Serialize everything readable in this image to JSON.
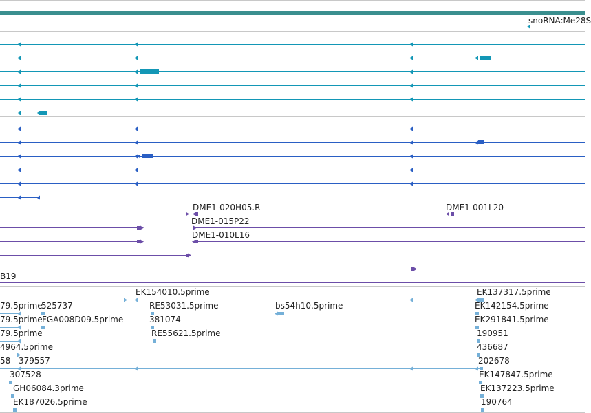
{
  "colors": {
    "background": "#ffffff",
    "separator": "#c8c8c8",
    "banner": "#3a8f8f",
    "transcript_teal": "#1397b6",
    "transcript_blue": "#2a5fc4",
    "clone_purple": "#6c4ea8",
    "est_light_blue": "#75b0d8",
    "label_text": "#222222"
  },
  "tracks": {
    "ncrna": {
      "label": "snoRNA:Me28S"
    },
    "clones": {
      "labels": [
        "DME1-020H05.R",
        "DME1-001L20",
        "DME1-015P22",
        "DME1-010L16",
        "B19"
      ]
    },
    "ests": {
      "labels": [
        "EK154010.5prime",
        "EK137317.5prime",
        "79.5prime",
        "525737",
        "RE53031.5prime",
        "bs54h10.5prime",
        "EK142154.5prime",
        "79.5prime",
        "FGA008D09.5prime",
        "381074",
        "EK291841.5prime",
        "79.5prime",
        "RE55621.5prime",
        "190951",
        "4964.5prime",
        "436687",
        "58",
        "379557",
        "202678",
        "307528",
        "EK147847.5prime",
        "GH06084.3prime",
        "EK137223.5prime",
        "EK187026.5prime",
        "190764"
      ]
    }
  }
}
